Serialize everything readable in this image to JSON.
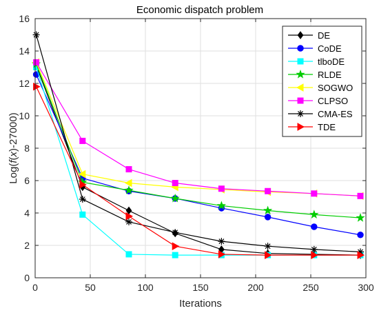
{
  "chart_data": {
    "type": "line",
    "title": "Economic dispatch problem",
    "xlabel": "Iterations",
    "ylabel": "Log(f(x)-27000)",
    "xlim": [
      0,
      300
    ],
    "ylim": [
      0,
      16
    ],
    "xticks": [
      0,
      50,
      100,
      150,
      200,
      250,
      300
    ],
    "yticks": [
      0,
      2,
      4,
      6,
      8,
      10,
      12,
      14,
      16
    ],
    "grid": true,
    "legend_position": "top-right",
    "series": [
      {
        "name": "DE",
        "color": "#000000",
        "marker": "diamond",
        "x": [
          1,
          43,
          85,
          127,
          169,
          211,
          253,
          295
        ],
        "y": [
          13.1,
          5.6,
          4.15,
          2.75,
          1.75,
          1.5,
          1.45,
          1.4
        ]
      },
      {
        "name": "CoDE",
        "color": "#0000ff",
        "marker": "circle",
        "x": [
          1,
          43,
          85,
          127,
          169,
          211,
          253,
          295
        ],
        "y": [
          12.55,
          6.15,
          5.35,
          4.9,
          4.3,
          3.75,
          3.15,
          2.65
        ]
      },
      {
        "name": "tlboDE",
        "color": "#00ffff",
        "marker": "square",
        "x": [
          1,
          43,
          85,
          127,
          169,
          211,
          253,
          295
        ],
        "y": [
          13.0,
          3.9,
          1.45,
          1.4,
          1.4,
          1.4,
          1.4,
          1.4
        ]
      },
      {
        "name": "RLDE",
        "color": "#00cc00",
        "marker": "star",
        "x": [
          1,
          43,
          85,
          127,
          169,
          211,
          253,
          295
        ],
        "y": [
          13.2,
          5.9,
          5.4,
          4.9,
          4.45,
          4.15,
          3.9,
          3.7
        ]
      },
      {
        "name": "SOGWO",
        "color": "#ffff00",
        "marker": "triangle-left",
        "x": [
          1,
          43,
          85,
          127,
          169,
          211,
          253,
          295
        ],
        "y": [
          13.3,
          6.4,
          5.85,
          5.6,
          5.45,
          5.3,
          5.2,
          5.05
        ]
      },
      {
        "name": "CLPSO",
        "color": "#ff00ff",
        "marker": "square",
        "x": [
          1,
          43,
          85,
          127,
          169,
          211,
          253,
          295
        ],
        "y": [
          13.3,
          8.45,
          6.7,
          5.85,
          5.5,
          5.35,
          5.2,
          5.05
        ]
      },
      {
        "name": "CMA-ES",
        "color": "#000000",
        "marker": "asterisk",
        "x": [
          1,
          43,
          85,
          127,
          169,
          211,
          253,
          295
        ],
        "y": [
          15.0,
          4.85,
          3.45,
          2.8,
          2.25,
          1.95,
          1.75,
          1.6
        ]
      },
      {
        "name": "TDE",
        "color": "#ff0000",
        "marker": "triangle-right",
        "x": [
          1,
          43,
          85,
          127,
          169,
          211,
          253,
          295
        ],
        "y": [
          11.8,
          5.75,
          3.8,
          1.95,
          1.45,
          1.4,
          1.4,
          1.4
        ]
      }
    ]
  }
}
